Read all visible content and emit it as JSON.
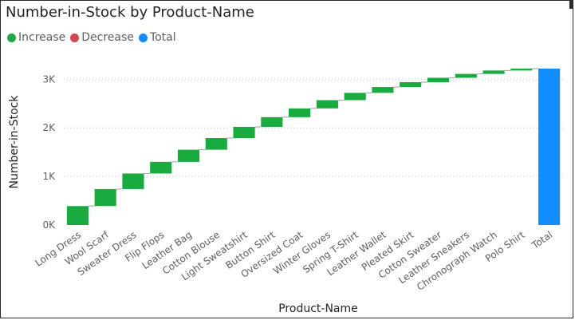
{
  "chart_data": {
    "type": "waterfall",
    "title": "Number-in-Stock by Product-Name",
    "xlabel": "Product-Name",
    "ylabel": "Number-in-Stock",
    "legend": [
      {
        "label": "Increase",
        "color": "#1aab40"
      },
      {
        "label": "Decrease",
        "color": "#d64554"
      },
      {
        "label": "Total",
        "color": "#118dff"
      }
    ],
    "legend_position": "top-left",
    "categories": [
      "Long Dress",
      "Wool Scarf",
      "Sweater Dress",
      "Flip Flops",
      "Leather Bag",
      "Cotton Blouse",
      "Light Sweatshirt",
      "Button Shirt",
      "Oversized Coat",
      "Winter Gloves",
      "Spring T-Shirt",
      "Leather Wallet",
      "Pleated Skirt",
      "Cotton Sweater",
      "Leather Sneakers",
      "Chronograph Watch",
      "Polo Shirt",
      "Total"
    ],
    "values": [
      390,
      350,
      320,
      240,
      250,
      240,
      230,
      200,
      180,
      170,
      150,
      120,
      100,
      90,
      80,
      70,
      40,
      3220
    ],
    "y_ticks": [
      {
        "value": 0,
        "label": "0K"
      },
      {
        "value": 1000,
        "label": "1K"
      },
      {
        "value": 2000,
        "label": "2K"
      },
      {
        "value": 3000,
        "label": "3K"
      }
    ],
    "ylim": [
      0,
      3350
    ],
    "grid": true
  }
}
